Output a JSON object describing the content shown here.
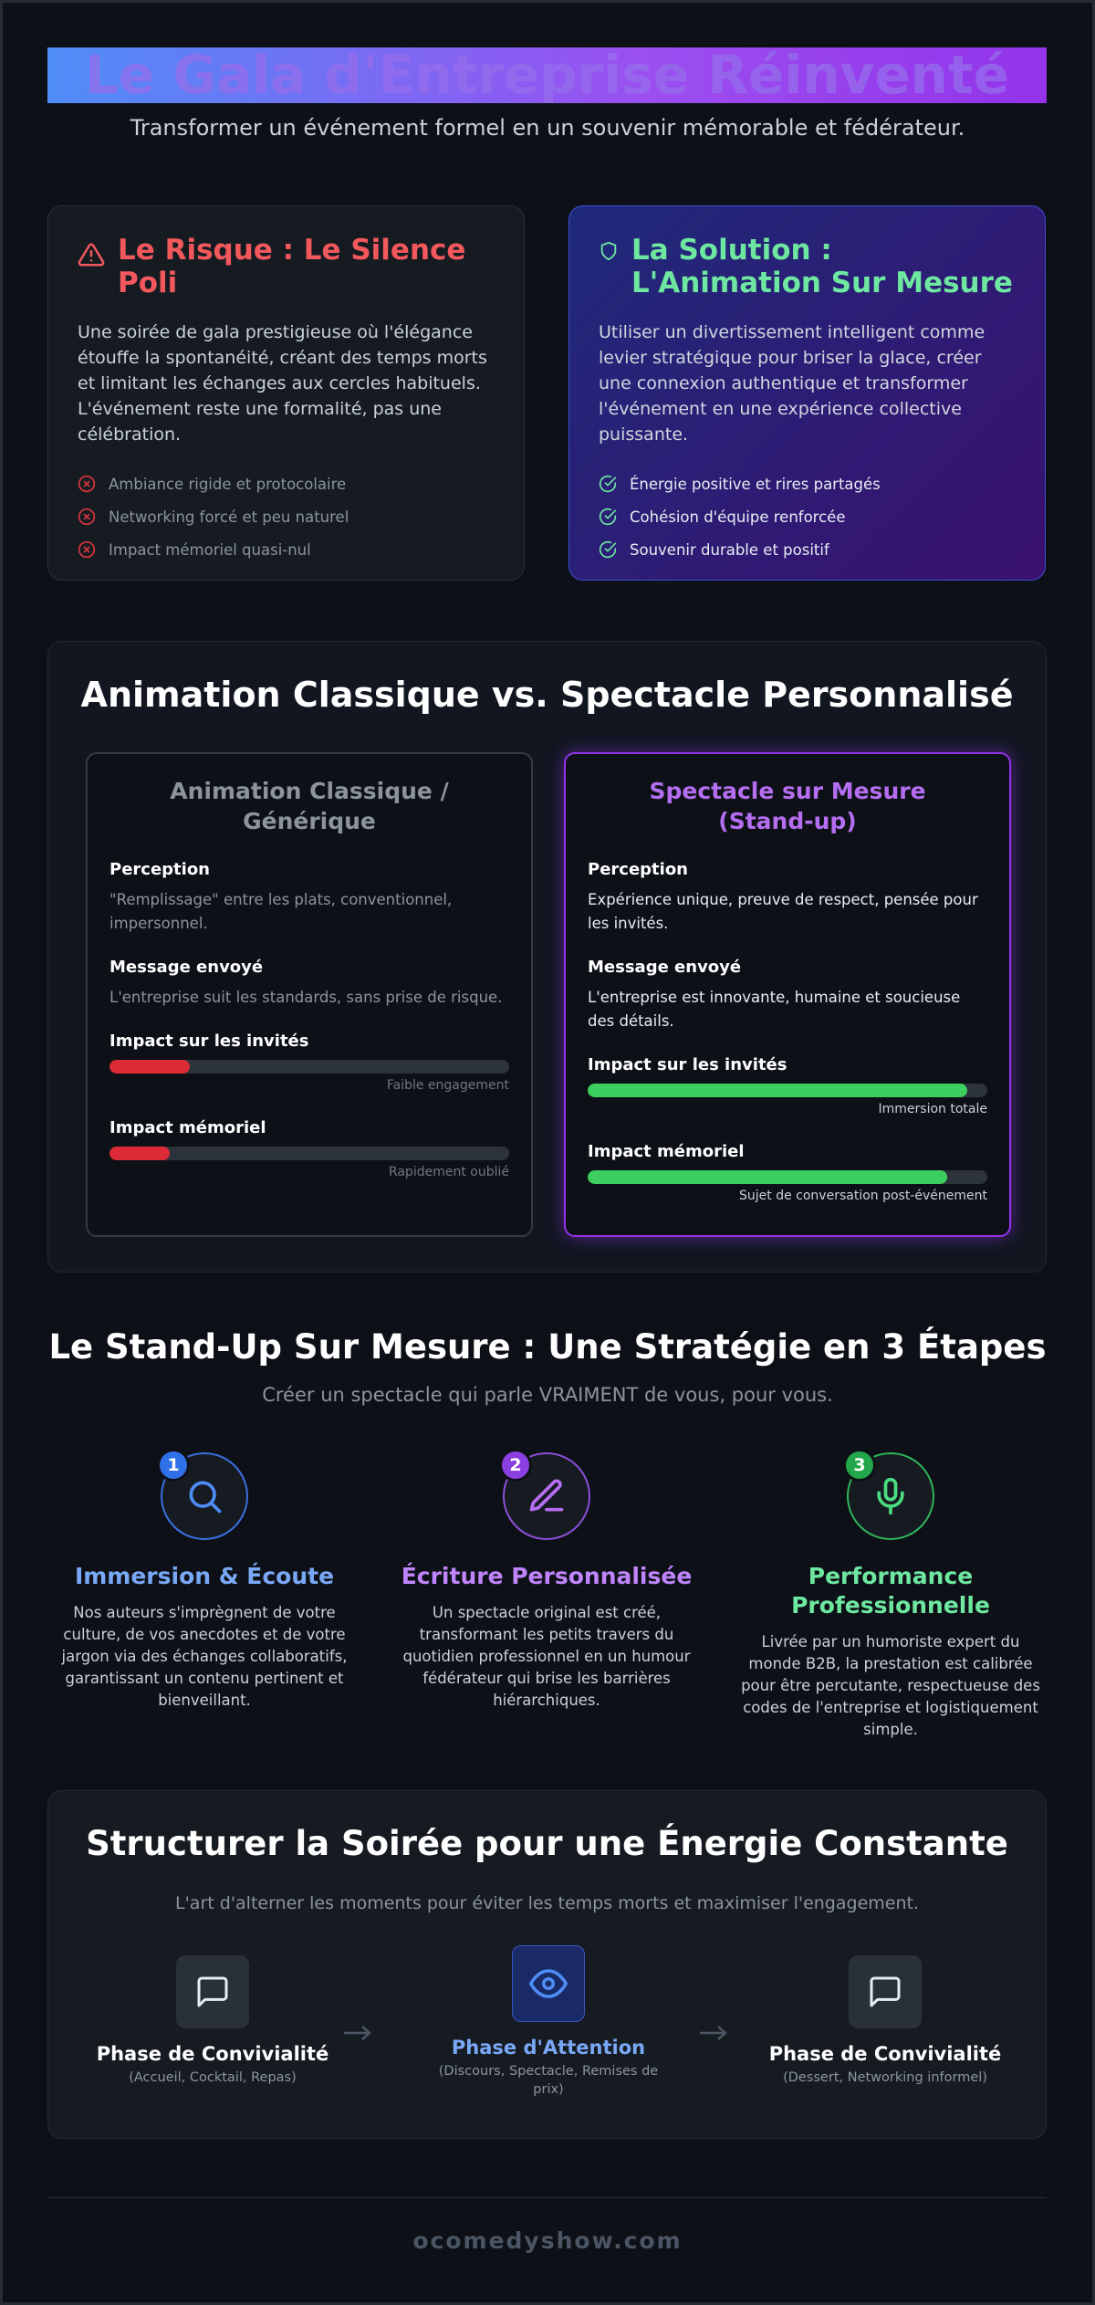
{
  "header": {
    "title": "Le Gala d'Entreprise Réinventé",
    "subtitle": "Transformer un événement formel en un souvenir mémorable et fédérateur."
  },
  "problem": {
    "title": "Le Risque : Le Silence Poli",
    "description": "Une soirée de gala prestigieuse où l'élégance étouffe la spontanéité, créant des temps morts et limitant les échanges aux cercles habituels. L'événement reste une formalité, pas une célébration.",
    "points": [
      "Ambiance rigide et protocolaire",
      "Networking forcé et peu naturel",
      "Impact mémoriel quasi-nul"
    ]
  },
  "solution": {
    "title": "La Solution : L'Animation Sur Mesure",
    "description": "Utiliser un divertissement intelligent comme levier stratégique pour briser la glace, créer une connexion authentique et transformer l'événement en une expérience collective puissante.",
    "points": [
      "Énergie positive et rires partagés",
      "Cohésion d'équipe renforcée",
      "Souvenir durable et positif"
    ]
  },
  "comparison": {
    "title": "Animation Classique vs. Spectacle Personnalisé",
    "columns": [
      {
        "heading": "Animation Classique / Générique",
        "sections": [
          {
            "label": "Perception",
            "text": "\"Remplissage\" entre les plats, conventionnel, impersonnel."
          },
          {
            "label": "Message envoyé",
            "text": "L'entreprise suit les standards, sans prise de risque."
          }
        ],
        "metrics": [
          {
            "label": "Impact sur les invités",
            "level": 20,
            "caption": "Faible engagement"
          },
          {
            "label": "Impact mémoriel",
            "level": 15,
            "caption": "Rapidement oublié"
          }
        ]
      },
      {
        "heading": "Spectacle sur Mesure (Stand-up)",
        "sections": [
          {
            "label": "Perception",
            "text": "Expérience unique, preuve de respect, pensée pour les invités."
          },
          {
            "label": "Message envoyé",
            "text": "L'entreprise est innovante, humaine et soucieuse des détails."
          }
        ],
        "metrics": [
          {
            "label": "Impact sur les invités",
            "level": 95,
            "caption": "Immersion totale"
          },
          {
            "label": "Impact mémoriel",
            "level": 90,
            "caption": "Sujet de conversation post-événement"
          }
        ]
      }
    ]
  },
  "steps": {
    "title": "Le Stand-Up Sur Mesure : Une Stratégie en 3 Étapes",
    "subtitle": "Créer un spectacle qui parle VRAIMENT de vous, pour vous.",
    "items": [
      {
        "number": 1,
        "title": "Immersion & Écoute",
        "text": "Nos auteurs s'imprègnent de votre culture, de vos anecdotes et de votre jargon via des échanges collaboratifs, garantissant un contenu pertinent et bienveillant."
      },
      {
        "number": 2,
        "title": "Écriture Personnalisée",
        "text": "Un spectacle original est créé, transformant les petits travers du quotidien professionnel en un humour fédérateur qui brise les barrières hiérarchiques."
      },
      {
        "number": 3,
        "title": "Performance Professionnelle",
        "text": "Livrée par un humoriste expert du monde B2B, la prestation est calibrée pour être percutante, respectueuse des codes de l'entreprise et logistiquement simple."
      }
    ]
  },
  "flow": {
    "title": "Structurer la Soirée pour une Énergie Constante",
    "subtitle": "L'art d'alterner les moments pour éviter les temps morts et maximiser l'engagement.",
    "phases": [
      {
        "title": "Phase de Convivialité",
        "detail": "(Accueil, Cocktail, Repas)"
      },
      {
        "title": "Phase d'Attention",
        "detail": "(Discours, Spectacle, Remises de prix)"
      },
      {
        "title": "Phase de Convivialité",
        "detail": "(Dessert, Networking informel)"
      }
    ]
  },
  "footer": {
    "site": "ocomedyshow.com"
  }
}
